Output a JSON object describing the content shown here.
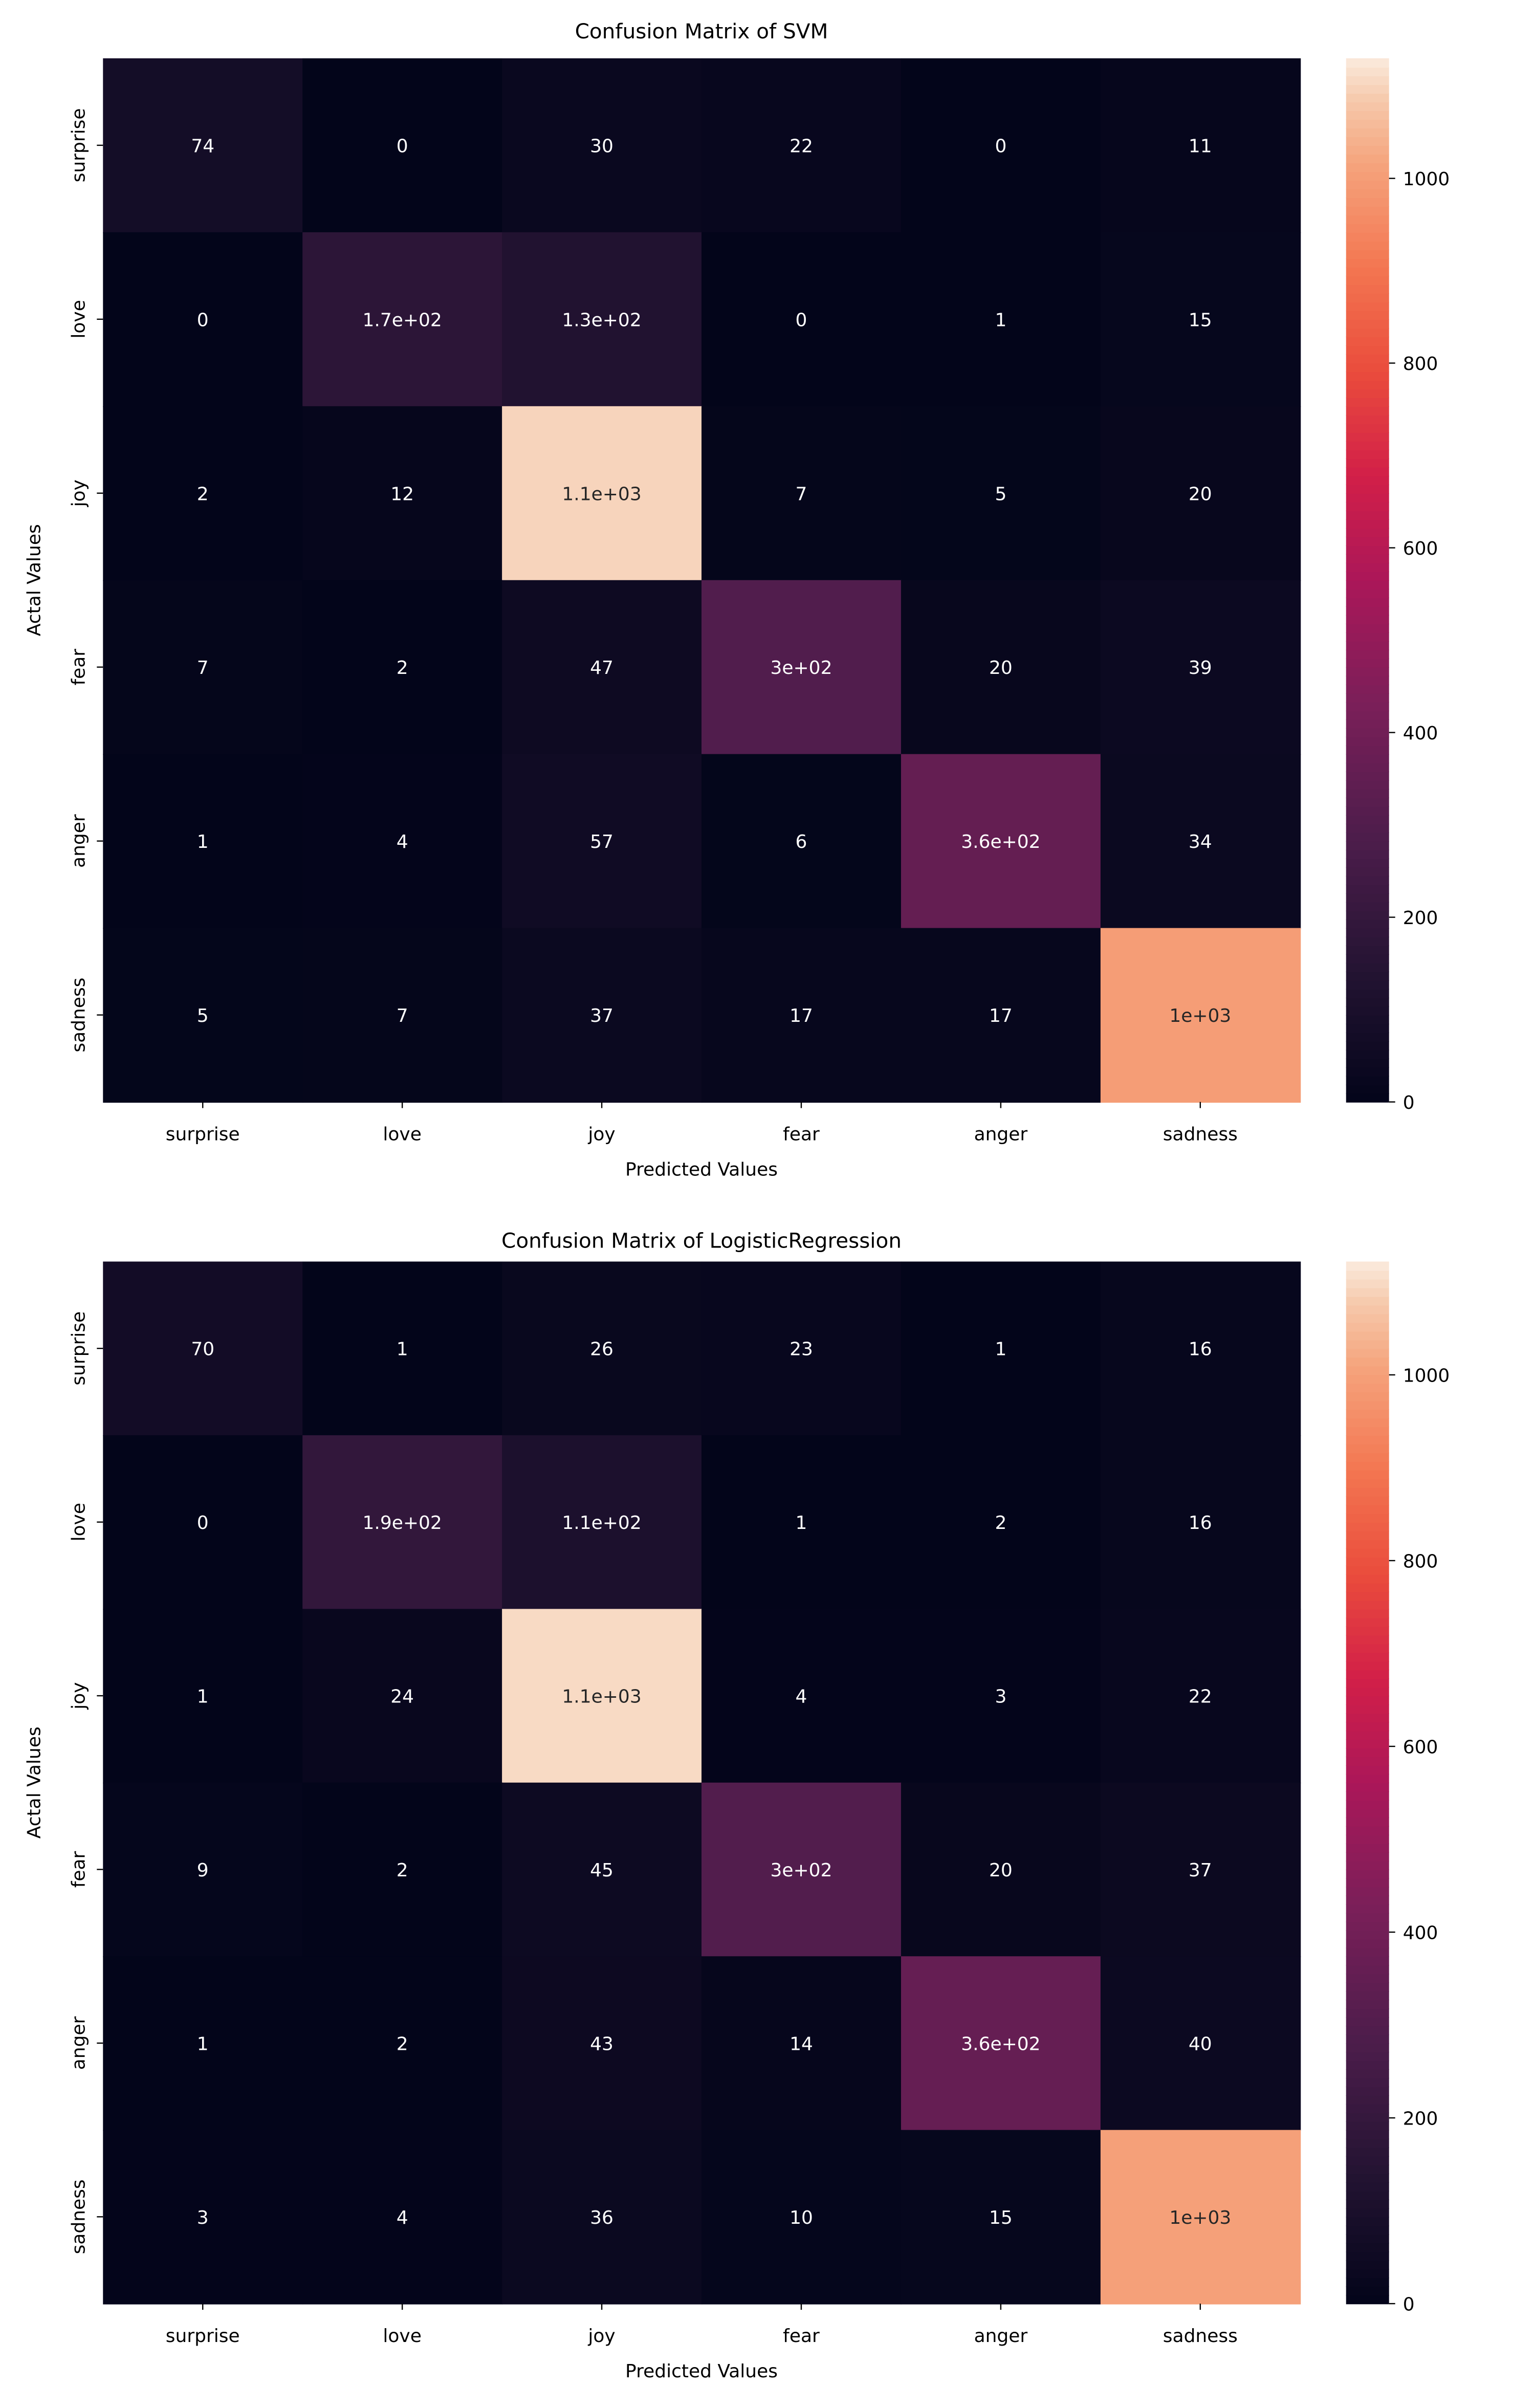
{
  "chart_data": [
    {
      "type": "heatmap",
      "title": "Confusion Matrix of SVM",
      "xlabel": "Predicted Values",
      "ylabel": "Actal Values",
      "x_categories": [
        "surprise",
        "love",
        "joy",
        "fear",
        "anger",
        "sadness"
      ],
      "y_categories": [
        "surprise",
        "love",
        "joy",
        "fear",
        "anger",
        "sadness"
      ],
      "values": [
        [
          74,
          0,
          30,
          22,
          0,
          11
        ],
        [
          0,
          170,
          130,
          0,
          1,
          15
        ],
        [
          2,
          12,
          1100,
          7,
          5,
          20
        ],
        [
          7,
          2,
          47,
          300,
          20,
          39
        ],
        [
          1,
          4,
          57,
          6,
          360,
          34
        ],
        [
          5,
          7,
          37,
          17,
          17,
          1000
        ]
      ],
      "annotations": [
        [
          "74",
          "0",
          "30",
          "22",
          "0",
          "11"
        ],
        [
          "0",
          "1.7e+02",
          "1.3e+02",
          "0",
          "1",
          "15"
        ],
        [
          "2",
          "12",
          "1.1e+03",
          "7",
          "5",
          "20"
        ],
        [
          "7",
          "2",
          "47",
          "3e+02",
          "20",
          "39"
        ],
        [
          "1",
          "4",
          "57",
          "6",
          "3.6e+02",
          "34"
        ],
        [
          "5",
          "7",
          "37",
          "17",
          "17",
          "1e+03"
        ]
      ],
      "colorbar": {
        "range": [
          0,
          1130
        ],
        "ticks": [
          0,
          200,
          400,
          600,
          800,
          1000
        ],
        "colormap": "rocket"
      }
    },
    {
      "type": "heatmap",
      "title": "Confusion Matrix of LogisticRegression",
      "xlabel": "Predicted Values",
      "ylabel": "Actal Values",
      "x_categories": [
        "surprise",
        "love",
        "joy",
        "fear",
        "anger",
        "sadness"
      ],
      "y_categories": [
        "surprise",
        "love",
        "joy",
        "fear",
        "anger",
        "sadness"
      ],
      "values": [
        [
          70,
          1,
          26,
          23,
          1,
          16
        ],
        [
          0,
          190,
          110,
          1,
          2,
          16
        ],
        [
          1,
          24,
          1100,
          4,
          3,
          22
        ],
        [
          9,
          2,
          45,
          300,
          20,
          37
        ],
        [
          1,
          2,
          43,
          14,
          360,
          40
        ],
        [
          3,
          4,
          36,
          10,
          15,
          1000
        ]
      ],
      "annotations": [
        [
          "70",
          "1",
          "26",
          "23",
          "1",
          "16"
        ],
        [
          "0",
          "1.9e+02",
          "1.1e+02",
          "1",
          "2",
          "16"
        ],
        [
          "1",
          "24",
          "1.1e+03",
          "4",
          "3",
          "22"
        ],
        [
          "9",
          "2",
          "45",
          "3e+02",
          "20",
          "37"
        ],
        [
          "1",
          "2",
          "43",
          "14",
          "3.6e+02",
          "40"
        ],
        [
          "3",
          "4",
          "36",
          "10",
          "15",
          "1e+03"
        ]
      ],
      "colorbar": {
        "range": [
          0,
          1122
        ],
        "ticks": [
          0,
          200,
          400,
          600,
          800,
          1000
        ],
        "colormap": "rocket"
      }
    }
  ]
}
